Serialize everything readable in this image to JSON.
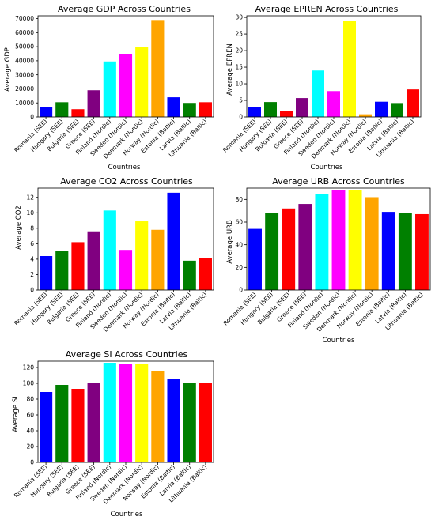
{
  "chart_data": [
    {
      "type": "bar",
      "title": "Average GDP Across Countries",
      "xlabel": "Countries",
      "ylabel": "Average GDP",
      "categories": [
        "Romania (SEE)",
        "Hungary (SEE)",
        "Bulgaria (SEE)",
        "Greece (SEE)",
        "Finland (Nordic)",
        "Sweden (Nordic)",
        "Denmark (Nordic)",
        "Norway (Nordic)",
        "Estonia (Baltic)",
        "Latvia (Baltic)",
        "Lithuania (Baltic)"
      ],
      "values": [
        7000,
        10500,
        5500,
        19000,
        39500,
        45000,
        49500,
        69000,
        14000,
        10000,
        10500
      ],
      "colors": [
        "#0000ff",
        "#008000",
        "#ff0000",
        "#800080",
        "#00ffff",
        "#ff00ff",
        "#ffff00",
        "#ffa500",
        "#0000ff",
        "#008000",
        "#ff0000"
      ],
      "ylim": [
        0,
        72000
      ],
      "yticks": [
        0,
        10000,
        20000,
        30000,
        40000,
        50000,
        60000,
        70000
      ],
      "grid": false
    },
    {
      "type": "bar",
      "title": "Average EPREN Across Countries",
      "xlabel": "Countries",
      "ylabel": "Average EPREN",
      "categories": [
        "Romania (SEE)",
        "Hungary (SEE)",
        "Bulgaria (SEE)",
        "Greece (SEE)",
        "Finland (Nordic)",
        "Sweden (Nordic)",
        "Denmark (Nordic)",
        "Norway (Nordic)",
        "Estonia (Baltic)",
        "Latvia (Baltic)",
        "Lithuania (Baltic)"
      ],
      "values": [
        3.0,
        4.5,
        1.8,
        5.7,
        14.0,
        7.8,
        29.0,
        0.8,
        4.6,
        4.2,
        8.3
      ],
      "colors": [
        "#0000ff",
        "#008000",
        "#ff0000",
        "#800080",
        "#00ffff",
        "#ff00ff",
        "#ffff00",
        "#ffa500",
        "#0000ff",
        "#008000",
        "#ff0000"
      ],
      "ylim": [
        0,
        30.5
      ],
      "yticks": [
        0,
        5,
        10,
        15,
        20,
        25,
        30
      ],
      "grid": false
    },
    {
      "type": "bar",
      "title": "Average CO2 Across Countries",
      "xlabel": "",
      "ylabel": "Average CO2",
      "categories": [
        "Romania (SEE)",
        "Hungary (SEE)",
        "Bulgaria (SEE)",
        "Greece (SEE)",
        "Finland (Nordic)",
        "Sweden (Nordic)",
        "Denmark (Nordic)",
        "Norway (Nordic)",
        "Estonia (Baltic)",
        "Latvia (Baltic)",
        "Lithuania (Baltic)"
      ],
      "values": [
        4.4,
        5.1,
        6.2,
        7.6,
        10.3,
        5.2,
        8.9,
        7.8,
        12.6,
        3.8,
        4.1
      ],
      "colors": [
        "#0000ff",
        "#008000",
        "#ff0000",
        "#800080",
        "#00ffff",
        "#ff00ff",
        "#ffff00",
        "#ffa500",
        "#0000ff",
        "#008000",
        "#ff0000"
      ],
      "ylim": [
        0,
        13.2
      ],
      "yticks": [
        0,
        2,
        4,
        6,
        8,
        10,
        12
      ],
      "grid": false
    },
    {
      "type": "bar",
      "title": "Average URB Across Countries",
      "xlabel": "Countries",
      "ylabel": "Average URB",
      "categories": [
        "Romania (SEE)",
        "Hungary (SEE)",
        "Bulgaria (SEE)",
        "Greece (SEE)",
        "Finland (Nordic)",
        "Sweden (Nordic)",
        "Denmark (Nordic)",
        "Norway (Nordic)",
        "Estonia (Baltic)",
        "Latvia (Baltic)",
        "Lithuania (Baltic)"
      ],
      "values": [
        54,
        68,
        72,
        76,
        85,
        88,
        88,
        82,
        69,
        68,
        67
      ],
      "colors": [
        "#0000ff",
        "#008000",
        "#ff0000",
        "#800080",
        "#00ffff",
        "#ff00ff",
        "#ffff00",
        "#ffa500",
        "#0000ff",
        "#008000",
        "#ff0000"
      ],
      "ylim": [
        0,
        90
      ],
      "yticks": [
        0,
        20,
        40,
        60,
        80
      ],
      "grid": false
    },
    {
      "type": "bar",
      "title": "Average SI Across Countries",
      "xlabel": "Countries",
      "ylabel": "Average SI",
      "categories": [
        "Romania (SEE)",
        "Hungary (SEE)",
        "Bulgaria (SEE)",
        "Greece (SEE)",
        "Finland (Nordic)",
        "Sweden (Nordic)",
        "Denmark (Nordic)",
        "Norway (Nordic)",
        "Estonia (Baltic)",
        "Latvia (Baltic)",
        "Lithuania (Baltic)"
      ],
      "values": [
        89,
        98,
        93,
        101,
        126,
        125,
        125,
        115,
        105,
        100,
        100
      ],
      "colors": [
        "#0000ff",
        "#008000",
        "#ff0000",
        "#800080",
        "#00ffff",
        "#ff00ff",
        "#ffff00",
        "#ffa500",
        "#0000ff",
        "#008000",
        "#ff0000"
      ],
      "ylim": [
        0,
        128
      ],
      "yticks": [
        0,
        20,
        40,
        60,
        80,
        100,
        120
      ],
      "grid": false
    }
  ]
}
